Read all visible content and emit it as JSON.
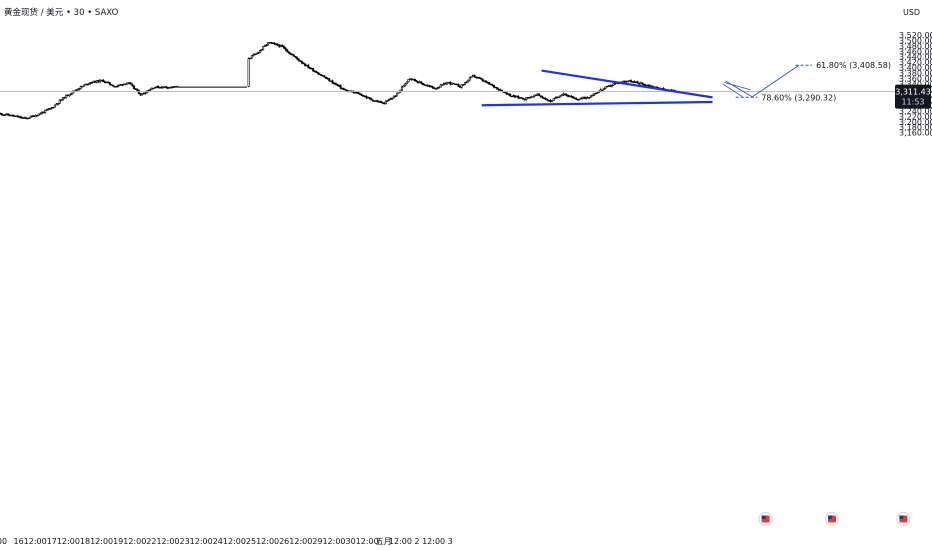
{
  "chart_data": {
    "type": "candlestick",
    "title": "黄金现货 / 美元 • 30 • SAXO",
    "y_unit": "USD",
    "ylim": [
      3150,
      3530
    ],
    "y_ticks": [
      "3,520.00",
      "3,500.00",
      "3,480.00",
      "3,460.00",
      "3,440.00",
      "3,420.00",
      "3,400.00",
      "3,380.00",
      "3,360.00",
      "3,340.00",
      "3,320.00",
      "3,300.00",
      "3,280.00",
      "3,260.00",
      "3,240.00",
      "3,220.00",
      "3,200.00",
      "3,180.00",
      "3,160.00"
    ],
    "x_ticks": [
      "00",
      "16",
      "12:00",
      "17",
      "12:00",
      "18",
      "12:00",
      "19",
      "12:00",
      "22",
      "12:00",
      "23",
      "12:00",
      "24",
      "12:00",
      "25",
      "12:00",
      "26",
      "12:00",
      "29",
      "12:00",
      "30",
      "12:00",
      "五月",
      "12:00",
      "2",
      "12:00",
      "3"
    ],
    "current_price": {
      "label": "3,311.43",
      "timer": "11:53",
      "value": 3311.43
    },
    "price_path": [
      3230,
      3222,
      3212,
      3228,
      3250,
      3290,
      3320,
      3345,
      3352,
      3330,
      3345,
      3300,
      3328,
      3328,
      3328,
      3340,
      3365,
      3390,
      3408,
      3422,
      3450,
      3492,
      3478,
      3440,
      3405,
      3375,
      3345,
      3315,
      3305,
      3282,
      3268,
      3300,
      3362,
      3340,
      3323,
      3345,
      3330,
      3370,
      3345,
      3320,
      3295,
      3285,
      3300,
      3275,
      3305,
      3282,
      3292,
      3318,
      3340,
      3352,
      3342,
      3330,
      3318,
      3311
    ],
    "fib_levels": [
      {
        "label": "61.80% (3,408.58)",
        "value": 3408.58
      },
      {
        "label": "78.60% (3,290.32)",
        "value": 3290.32
      }
    ],
    "trendlines": [
      {
        "name": "",
        "from": [
          32.5,
          3389
        ],
        "to": [
          42.8,
          3290
        ]
      },
      {
        "name": "",
        "from": [
          28.9,
          3261
        ],
        "to": [
          42.8,
          3273
        ]
      }
    ],
    "projection": [
      [
        43.6,
        3350
      ],
      [
        45.2,
        3292
      ],
      [
        48.0,
        3408
      ]
    ],
    "calendar_flags": [
      46.0,
      50.0,
      54.3,
      58.5
    ],
    "colors": {
      "candle": "#000000",
      "trendline": "#1d34e8",
      "projection": "#2b4fcc",
      "grid": "#b2b5be"
    }
  }
}
